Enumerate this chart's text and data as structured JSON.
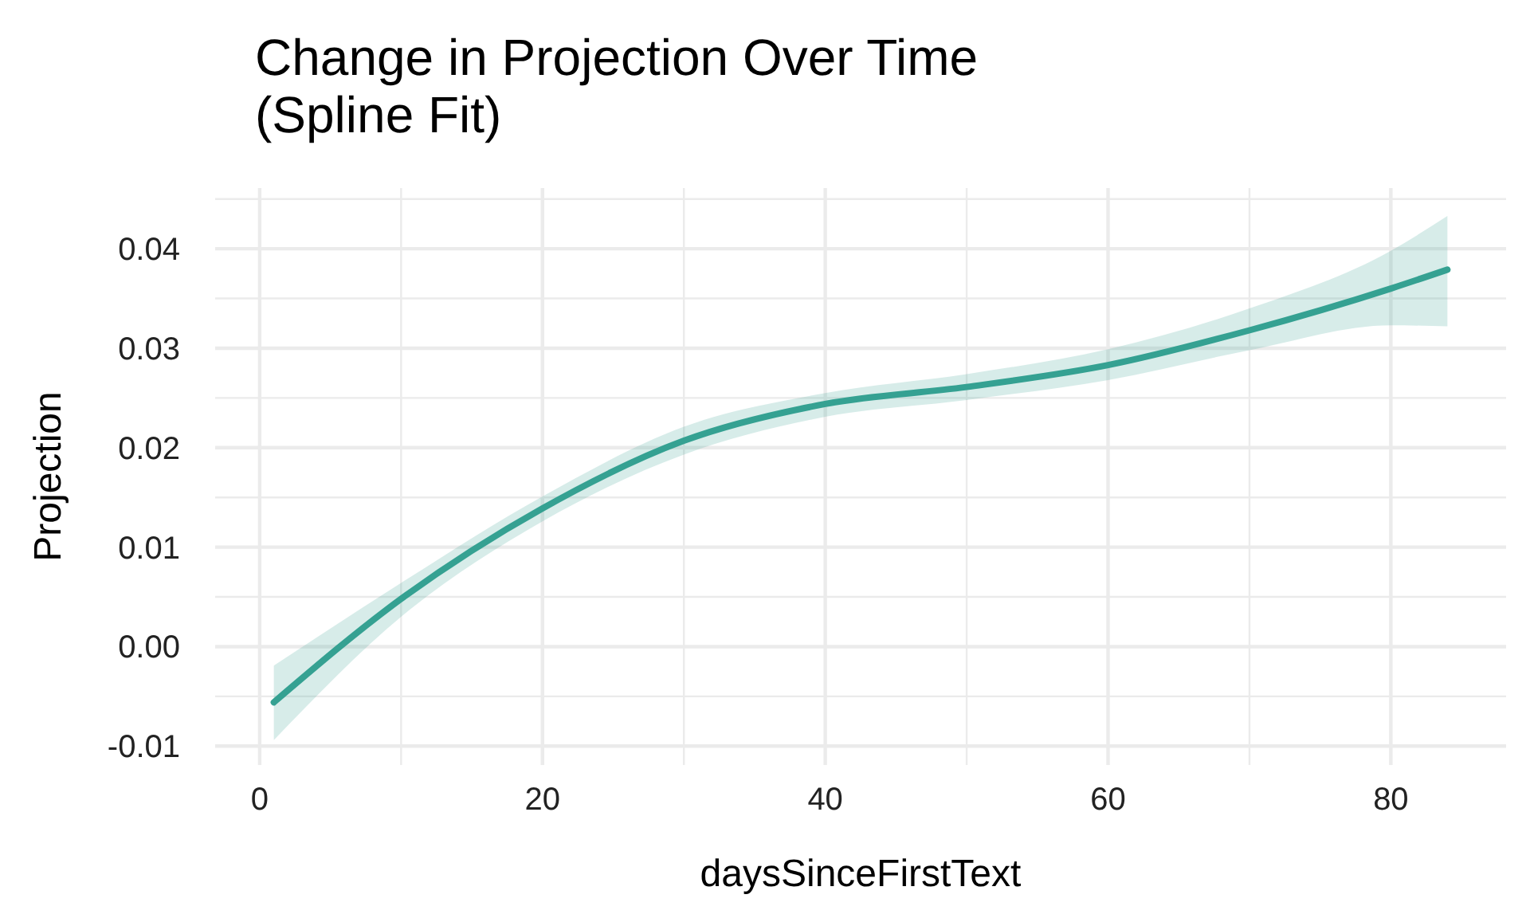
{
  "chart_data": {
    "type": "line",
    "title": "Change in Projection Over Time\n(Spline Fit)",
    "xlabel": "daysSinceFirstText",
    "ylabel": "Projection",
    "x": [
      1,
      10,
      20,
      30,
      40,
      50,
      60,
      70,
      80,
      84
    ],
    "series": [
      {
        "color": "#35a192",
        "values": [
          -0.0056,
          0.0048,
          0.0139,
          0.0207,
          0.0244,
          0.0261,
          0.0283,
          0.0318,
          0.036,
          0.0379
        ],
        "lower": [
          -0.0094,
          0.003,
          0.0126,
          0.0193,
          0.0231,
          0.0248,
          0.0268,
          0.0298,
          0.0323,
          0.0322
        ],
        "upper": [
          -0.0019,
          0.0064,
          0.0151,
          0.0221,
          0.0255,
          0.0274,
          0.0299,
          0.034,
          0.0398,
          0.0433
        ]
      }
    ],
    "xlim": [
      -3.15,
      88.15
    ],
    "ylim": [
      -0.0119,
      0.0461
    ],
    "xticks": [
      0,
      {
        "value": 10,
        "label": null
      },
      20,
      {
        "value": 30,
        "label": null
      },
      40,
      {
        "value": 50,
        "label": null
      },
      60,
      {
        "value": 70,
        "label": null
      },
      80
    ],
    "yticks": [
      {
        "value": -0.01,
        "label": "-0.01"
      },
      {
        "value": -0.005,
        "label": null
      },
      {
        "value": 0,
        "label": "0.00"
      },
      {
        "value": 0.005,
        "label": null
      },
      {
        "value": 0.01,
        "label": "0.01"
      },
      {
        "value": 0.015,
        "label": null
      },
      {
        "value": 0.02,
        "label": "0.02"
      },
      {
        "value": 0.025,
        "label": null
      },
      {
        "value": 0.03,
        "label": "0.03"
      },
      {
        "value": 0.035,
        "label": null
      },
      {
        "value": 0.04,
        "label": "0.04"
      },
      {
        "value": 0.045,
        "label": null
      }
    ],
    "grid": true
  }
}
